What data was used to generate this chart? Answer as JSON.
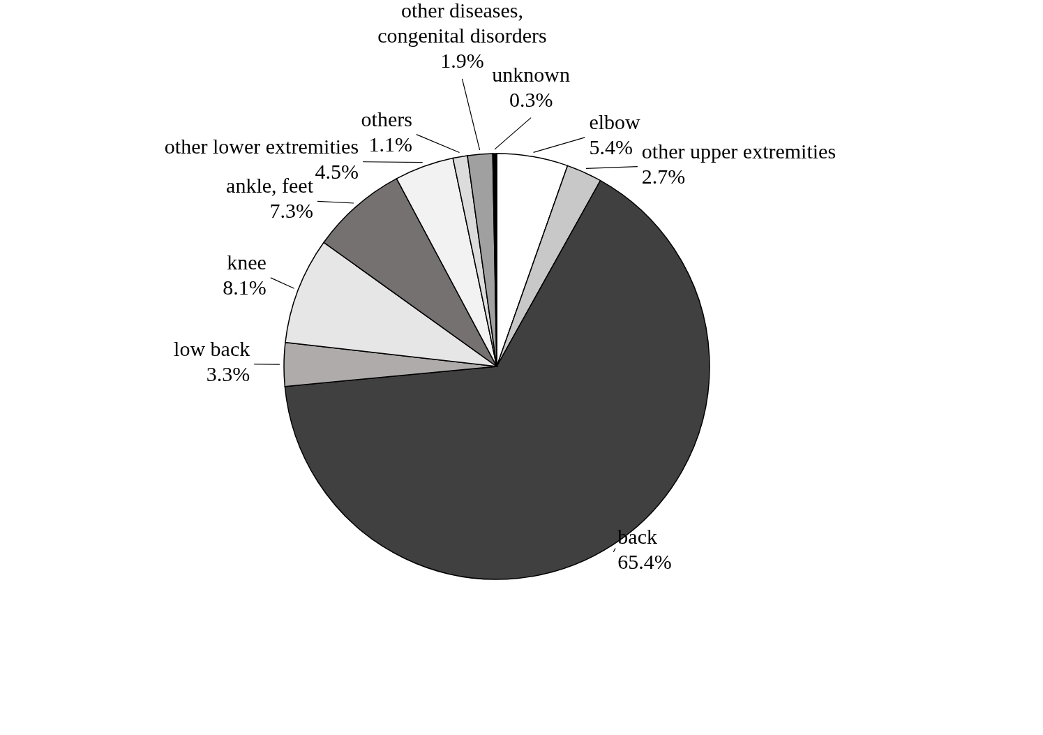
{
  "chart_data": {
    "type": "pie",
    "categories": [
      "elbow",
      "other upper extremities",
      "back",
      "low back",
      "knee",
      "ankle, feet",
      "other lower extremities",
      "others",
      "other diseases, congenital disorders",
      "unknown"
    ],
    "values": [
      5.4,
      2.7,
      65.4,
      3.3,
      8.1,
      7.3,
      4.5,
      1.1,
      1.9,
      0.3
    ],
    "value_labels": [
      "5.4%",
      "2.7%",
      "65.4%",
      "3.3%",
      "8.1%",
      "7.3%",
      "4.5%",
      "1.1%",
      "1.9%",
      "0.3%"
    ],
    "colors": [
      "#ffffff",
      "#c8c8c8",
      "#404040",
      "#afabab",
      "#e6e6e6",
      "#767171",
      "#f2f2f2",
      "#dcdcdc",
      "#a0a0a0",
      "#000000"
    ]
  }
}
